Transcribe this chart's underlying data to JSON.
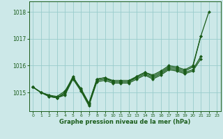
{
  "xlabel": "Graphe pression niveau de la mer (hPa)",
  "bg_color": "#cce8e8",
  "grid_color": "#99cccc",
  "line_color": "#1a5c1a",
  "ylim": [
    1014.3,
    1018.4
  ],
  "xlim": [
    -0.5,
    23.5
  ],
  "yticks": [
    1015,
    1016,
    1017,
    1018
  ],
  "xticks": [
    0,
    1,
    2,
    3,
    4,
    5,
    6,
    7,
    8,
    9,
    10,
    11,
    12,
    13,
    14,
    15,
    16,
    17,
    18,
    19,
    20,
    21,
    22,
    23
  ],
  "markersize": 2.5,
  "linewidth": 0.9,
  "series": [
    [
      1015.2,
      1015.0,
      1014.9,
      1014.85,
      1015.05,
      1015.55,
      1015.15,
      1014.6,
      1015.5,
      1015.55,
      1015.45,
      1015.45,
      1015.45,
      1015.6,
      1015.75,
      1015.65,
      1015.8,
      1016.0,
      1015.95,
      1015.85,
      1016.0,
      1017.1,
      1018.0,
      null
    ],
    [
      1015.2,
      1015.0,
      1014.9,
      1014.8,
      1015.0,
      1015.6,
      1015.1,
      1014.6,
      1015.5,
      1015.55,
      1015.4,
      1015.4,
      1015.4,
      1015.6,
      1015.75,
      1015.6,
      1015.75,
      1015.95,
      1015.9,
      1015.8,
      1015.95,
      1017.1,
      null,
      null
    ],
    [
      1015.2,
      1015.0,
      1014.85,
      1014.8,
      1014.95,
      1015.55,
      1015.1,
      1014.55,
      1015.45,
      1015.5,
      1015.4,
      1015.4,
      1015.4,
      1015.55,
      1015.7,
      1015.55,
      1015.7,
      1015.9,
      1015.85,
      1015.75,
      1015.85,
      1016.35,
      null,
      null
    ],
    [
      1015.2,
      1015.0,
      1014.85,
      1014.8,
      1014.9,
      1015.5,
      1015.05,
      1014.5,
      1015.4,
      1015.45,
      1015.35,
      1015.35,
      1015.35,
      1015.5,
      1015.65,
      1015.5,
      1015.65,
      1015.85,
      1015.8,
      1015.7,
      1015.8,
      1016.25,
      null,
      null
    ]
  ]
}
